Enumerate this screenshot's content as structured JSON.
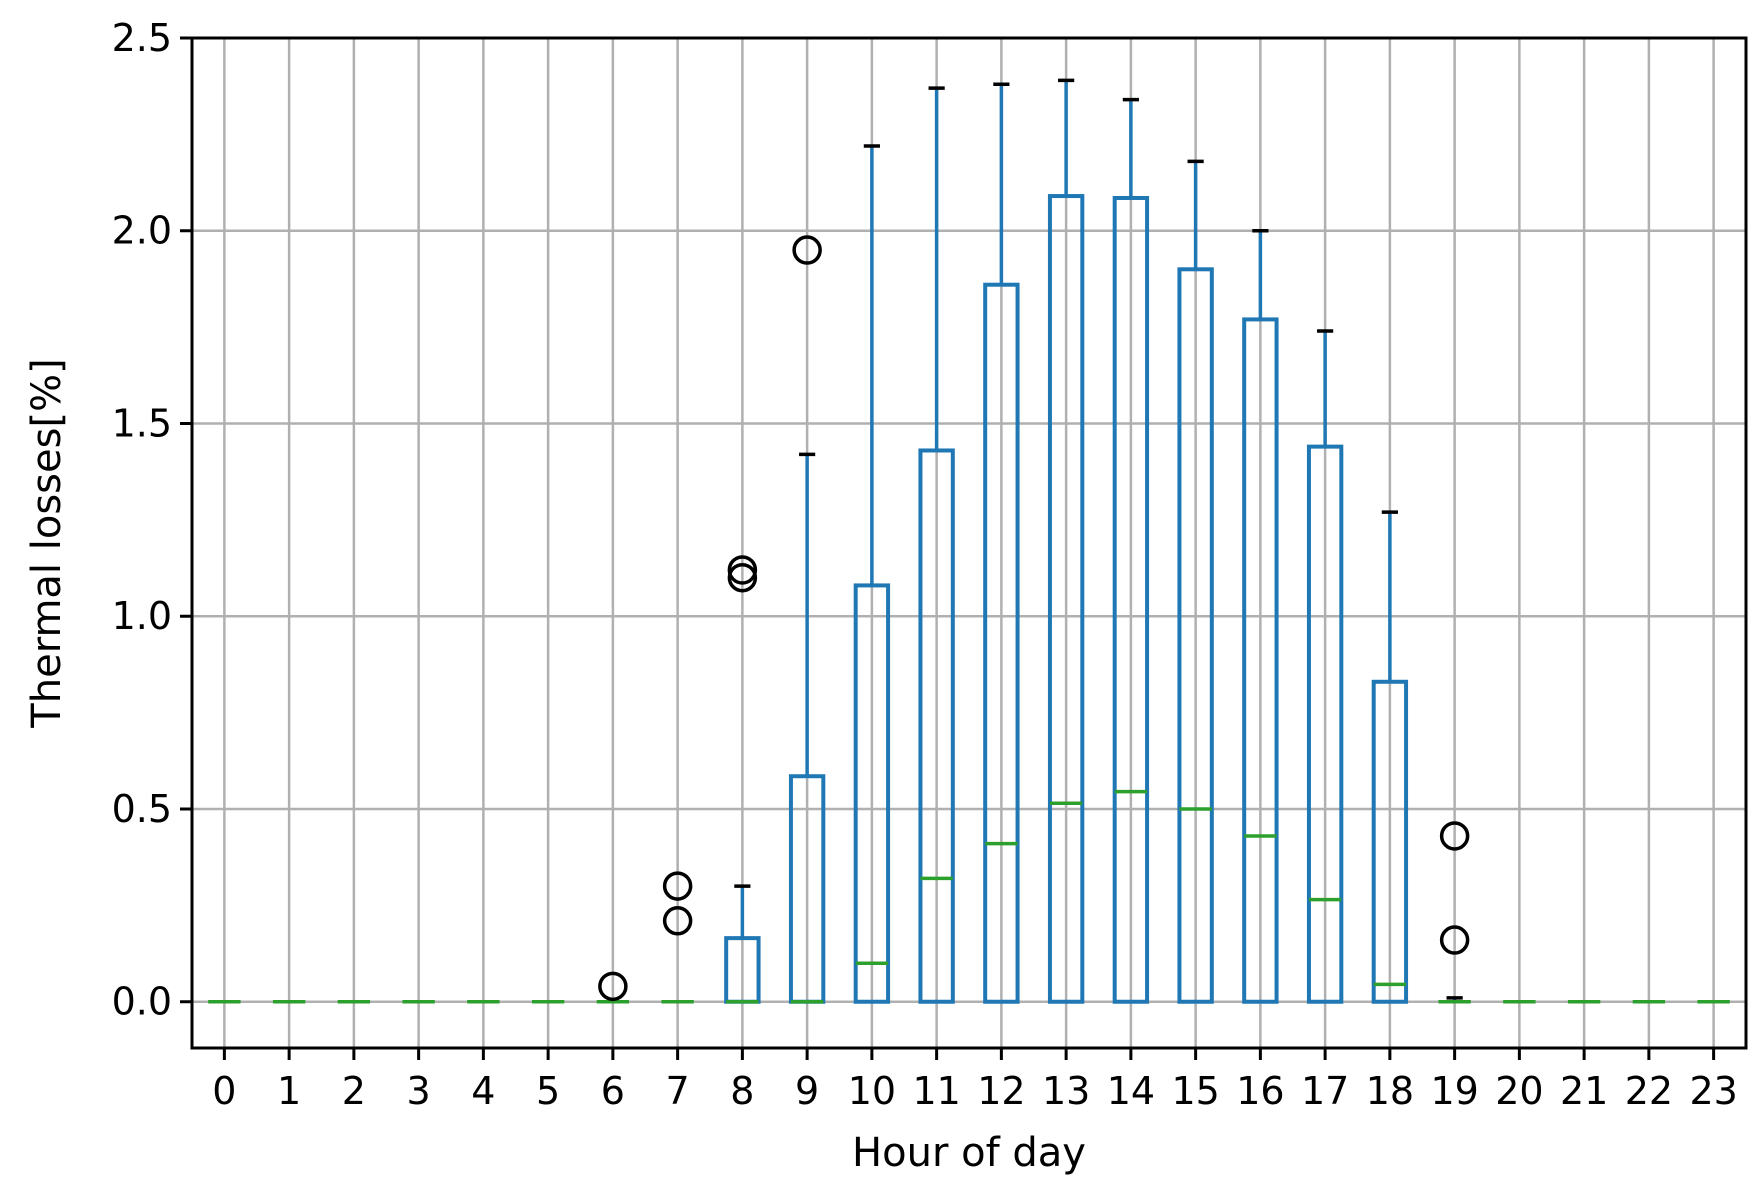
{
  "chart_data": {
    "type": "box",
    "xlabel": "Hour of day",
    "ylabel": "Thermal losses[%]",
    "ylim": [
      -0.12,
      2.5
    ],
    "yticks": [
      "0.0",
      "0.5",
      "1.0",
      "1.5",
      "2.0",
      "2.5"
    ],
    "grid": true,
    "colors": {
      "box": "#1f77b4",
      "median": "#2ca02c",
      "whisker_cap": "#000000",
      "outlier": "#000000",
      "grid": "#b0b0b0"
    },
    "categories": [
      "0",
      "1",
      "2",
      "3",
      "4",
      "5",
      "6",
      "7",
      "8",
      "9",
      "10",
      "11",
      "12",
      "13",
      "14",
      "15",
      "16",
      "17",
      "18",
      "19",
      "20",
      "21",
      "22",
      "23"
    ],
    "boxes": [
      {
        "hour": "0",
        "q1": 0,
        "median": 0,
        "q3": 0,
        "whisker_low": 0,
        "whisker_high": 0,
        "outliers": []
      },
      {
        "hour": "1",
        "q1": 0,
        "median": 0,
        "q3": 0,
        "whisker_low": 0,
        "whisker_high": 0,
        "outliers": []
      },
      {
        "hour": "2",
        "q1": 0,
        "median": 0,
        "q3": 0,
        "whisker_low": 0,
        "whisker_high": 0,
        "outliers": []
      },
      {
        "hour": "3",
        "q1": 0,
        "median": 0,
        "q3": 0,
        "whisker_low": 0,
        "whisker_high": 0,
        "outliers": []
      },
      {
        "hour": "4",
        "q1": 0,
        "median": 0,
        "q3": 0,
        "whisker_low": 0,
        "whisker_high": 0,
        "outliers": []
      },
      {
        "hour": "5",
        "q1": 0,
        "median": 0,
        "q3": 0,
        "whisker_low": 0,
        "whisker_high": 0,
        "outliers": []
      },
      {
        "hour": "6",
        "q1": 0,
        "median": 0,
        "q3": 0,
        "whisker_low": 0,
        "whisker_high": 0,
        "outliers": [
          0.04
        ]
      },
      {
        "hour": "7",
        "q1": 0,
        "median": 0,
        "q3": 0,
        "whisker_low": 0,
        "whisker_high": 0,
        "outliers": [
          0.21,
          0.3
        ]
      },
      {
        "hour": "8",
        "q1": 0,
        "median": 0,
        "q3": 0.165,
        "whisker_low": 0,
        "whisker_high": 0.3,
        "outliers": [
          1.1,
          1.12
        ]
      },
      {
        "hour": "9",
        "q1": 0,
        "median": 0,
        "q3": 0.585,
        "whisker_low": 0,
        "whisker_high": 1.42,
        "outliers": [
          1.95
        ]
      },
      {
        "hour": "10",
        "q1": 0,
        "median": 0.1,
        "q3": 1.08,
        "whisker_low": 0,
        "whisker_high": 2.22,
        "outliers": []
      },
      {
        "hour": "11",
        "q1": 0,
        "median": 0.32,
        "q3": 1.43,
        "whisker_low": 0,
        "whisker_high": 2.37,
        "outliers": []
      },
      {
        "hour": "12",
        "q1": 0,
        "median": 0.41,
        "q3": 1.86,
        "whisker_low": 0,
        "whisker_high": 2.38,
        "outliers": []
      },
      {
        "hour": "13",
        "q1": 0,
        "median": 0.515,
        "q3": 2.09,
        "whisker_low": 0,
        "whisker_high": 2.39,
        "outliers": []
      },
      {
        "hour": "14",
        "q1": 0,
        "median": 0.545,
        "q3": 2.085,
        "whisker_low": 0,
        "whisker_high": 2.34,
        "outliers": []
      },
      {
        "hour": "15",
        "q1": 0,
        "median": 0.5,
        "q3": 1.9,
        "whisker_low": 0,
        "whisker_high": 2.18,
        "outliers": []
      },
      {
        "hour": "16",
        "q1": 0,
        "median": 0.43,
        "q3": 1.77,
        "whisker_low": 0,
        "whisker_high": 2.0,
        "outliers": []
      },
      {
        "hour": "17",
        "q1": 0,
        "median": 0.265,
        "q3": 1.44,
        "whisker_low": 0,
        "whisker_high": 1.74,
        "outliers": []
      },
      {
        "hour": "18",
        "q1": 0,
        "median": 0.045,
        "q3": 0.83,
        "whisker_low": 0,
        "whisker_high": 1.27,
        "outliers": []
      },
      {
        "hour": "19",
        "q1": 0,
        "median": 0,
        "q3": 0,
        "whisker_low": 0,
        "whisker_high": 0.01,
        "outliers": [
          0.16,
          0.43
        ]
      },
      {
        "hour": "20",
        "q1": 0,
        "median": 0,
        "q3": 0,
        "whisker_low": 0,
        "whisker_high": 0,
        "outliers": []
      },
      {
        "hour": "21",
        "q1": 0,
        "median": 0,
        "q3": 0,
        "whisker_low": 0,
        "whisker_high": 0,
        "outliers": []
      },
      {
        "hour": "22",
        "q1": 0,
        "median": 0,
        "q3": 0,
        "whisker_low": 0,
        "whisker_high": 0,
        "outliers": []
      },
      {
        "hour": "23",
        "q1": 0,
        "median": 0,
        "q3": 0,
        "whisker_low": 0,
        "whisker_high": 0,
        "outliers": []
      }
    ]
  }
}
